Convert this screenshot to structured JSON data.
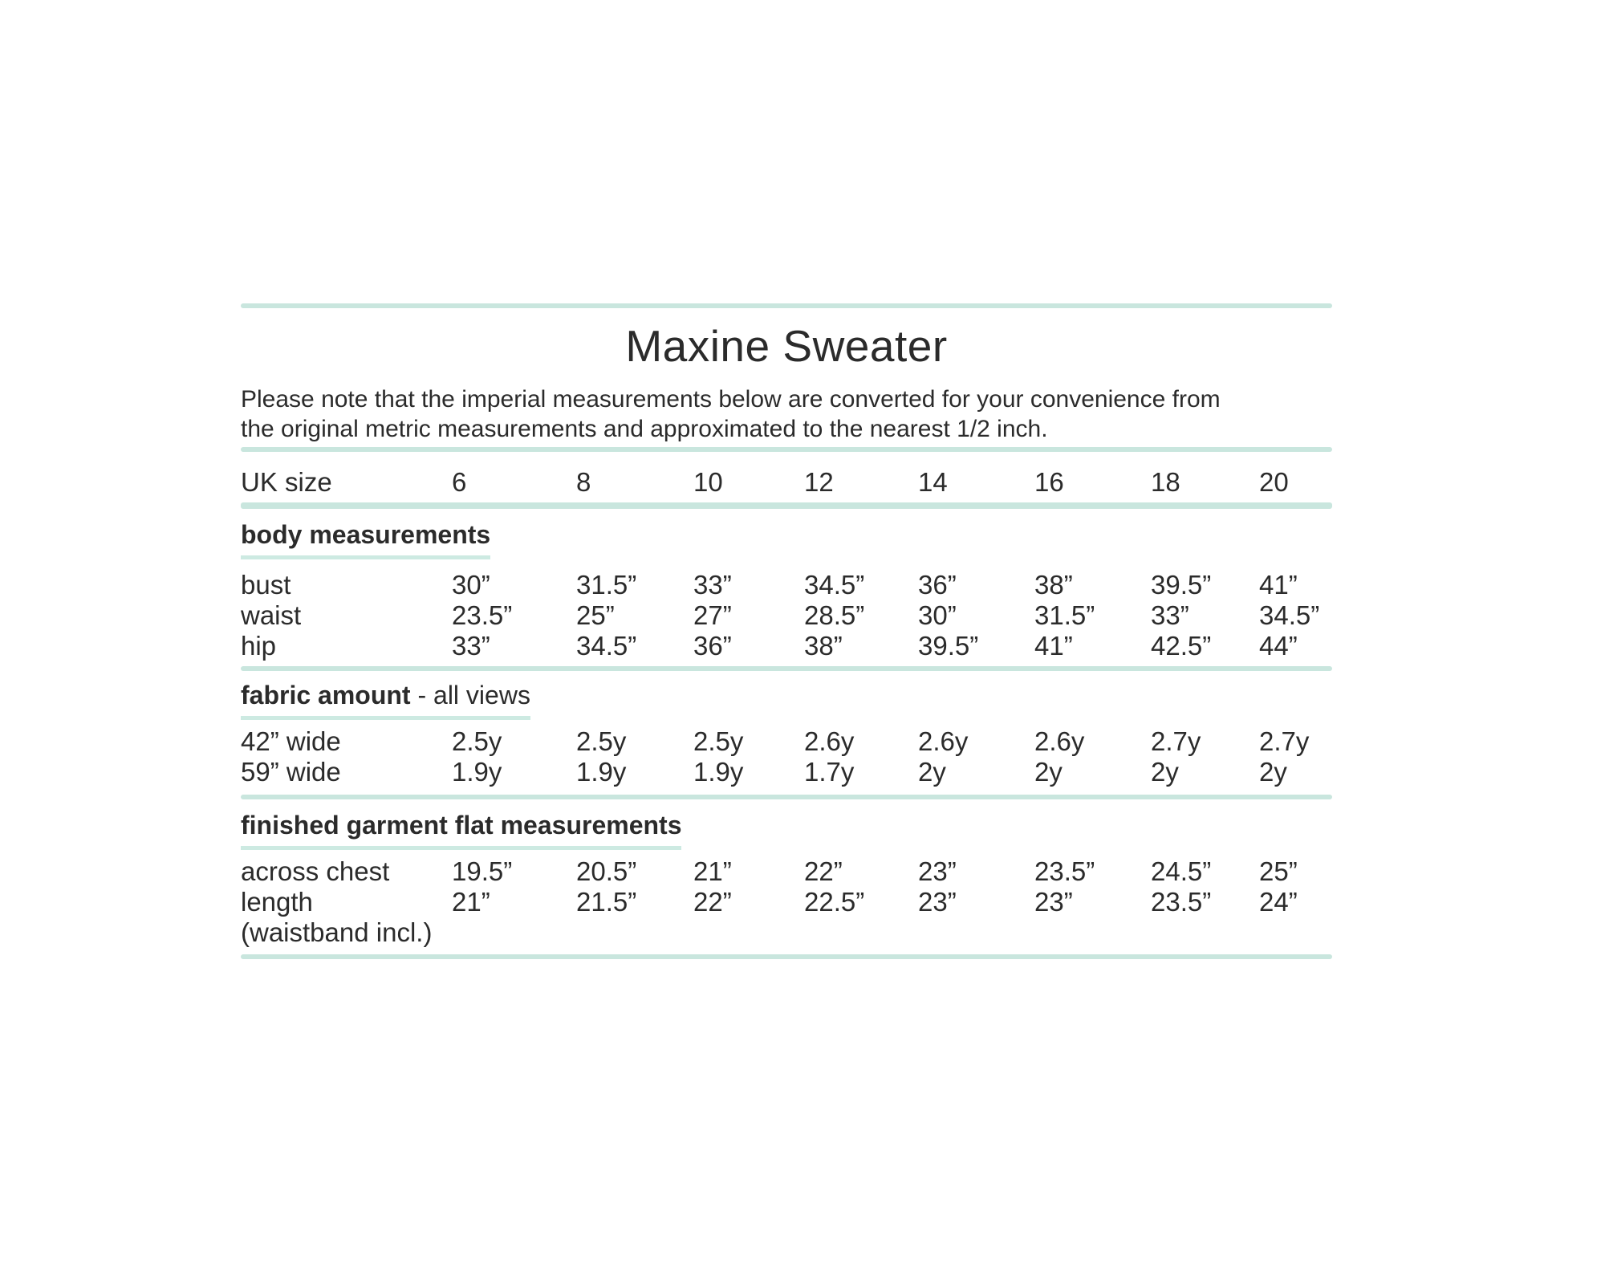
{
  "title": "Maxine Sweater",
  "note": {
    "line1": "Please note that the imperial measurements below are converted for your convenience from",
    "line2": "the original metric measurements and approximated to the nearest 1/2 inch."
  },
  "size_row": {
    "label": "UK size",
    "sizes": [
      "6",
      "8",
      "10",
      "12",
      "14",
      "16",
      "18",
      "20"
    ]
  },
  "sections": {
    "body": {
      "heading": "body measurements",
      "rows": {
        "bust": {
          "label": "bust",
          "values": [
            "30”",
            "31.5”",
            "33”",
            "34.5”",
            "36”",
            "38”",
            "39.5”",
            "41”"
          ]
        },
        "waist": {
          "label": "waist",
          "values": [
            "23.5”",
            "25”",
            "27”",
            "28.5”",
            "30”",
            "31.5”",
            "33”",
            "34.5”"
          ]
        },
        "hip": {
          "label": "hip",
          "values": [
            "33”",
            "34.5”",
            "36”",
            "38”",
            "39.5”",
            "41”",
            "42.5”",
            "44”"
          ]
        }
      }
    },
    "fabric": {
      "heading_bold": "fabric amount",
      "heading_rest": " - all views",
      "rows": {
        "w42": {
          "label": "42” wide",
          "values": [
            "2.5y",
            "2.5y",
            "2.5y",
            "2.6y",
            "2.6y",
            "2.6y",
            "2.7y",
            "2.7y"
          ]
        },
        "w59": {
          "label": "59” wide",
          "values": [
            "1.9y",
            "1.9y",
            "1.9y",
            "1.7y",
            "2y",
            "2y",
            "2y",
            "2y"
          ]
        }
      }
    },
    "finished": {
      "heading": "finished garment flat measurements",
      "rows": {
        "chest": {
          "label": "across chest",
          "values": [
            "19.5”",
            "20.5”",
            "21”",
            "22”",
            "23”",
            "23.5”",
            "24.5”",
            "25”"
          ]
        },
        "length": {
          "label": "length",
          "values": [
            "21”",
            "21.5”",
            "22”",
            "22.5”",
            "23”",
            "23”",
            "23.5”",
            "24”"
          ]
        },
        "waistband_note": {
          "label": "(waistband incl.)"
        }
      }
    }
  },
  "colors": {
    "accent_line": "#c9e6de",
    "text": "#2b2b2b"
  }
}
